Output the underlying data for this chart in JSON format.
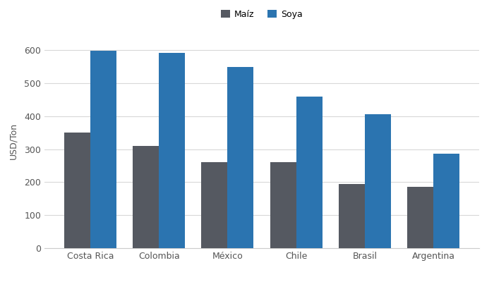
{
  "categories": [
    "Costa Rica",
    "Colombia",
    "México",
    "Chile",
    "Brasil",
    "Argentina"
  ],
  "maiz": [
    350,
    310,
    260,
    260,
    195,
    187
  ],
  "soya": [
    598,
    592,
    549,
    459,
    406,
    287
  ],
  "maiz_color": "#555961",
  "soya_color": "#2b74b0",
  "ylabel": "USD/Ton",
  "legend_labels": [
    "Maíz",
    "Soya"
  ],
  "ylim": [
    0,
    650
  ],
  "yticks": [
    0,
    100,
    200,
    300,
    400,
    500,
    600
  ],
  "background_color": "#ffffff",
  "plot_bg_color": "#ffffff",
  "grid_color": "#d8d8d8",
  "bar_width": 0.38
}
